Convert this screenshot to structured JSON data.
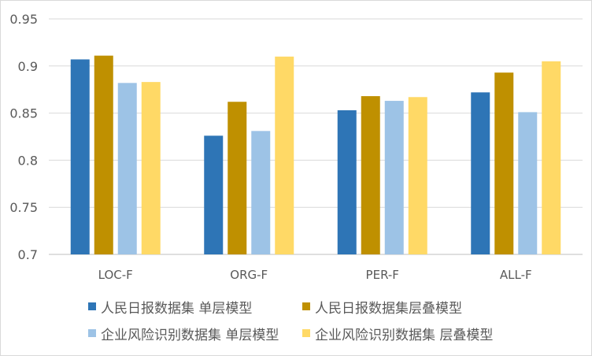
{
  "chart_data": {
    "type": "bar",
    "categories": [
      "LOC-F",
      "ORG-F",
      "PER-F",
      "ALL-F"
    ],
    "series": [
      {
        "name": "人民日报数据集 单层模型",
        "color": "#2e75b6",
        "values": [
          0.907,
          0.826,
          0.853,
          0.872
        ]
      },
      {
        "name": "人民日报数据集层叠模型",
        "color": "#bf9000",
        "values": [
          0.911,
          0.862,
          0.868,
          0.893
        ]
      },
      {
        "name": "企业风险识别数据集 单层模型",
        "color": "#9dc3e6",
        "values": [
          0.882,
          0.831,
          0.863,
          0.851
        ]
      },
      {
        "name": "企业风险识别数据集 层叠模型",
        "color": "#ffd966",
        "values": [
          0.883,
          0.91,
          0.867,
          0.905
        ]
      }
    ],
    "ylim": [
      0.7,
      0.95
    ],
    "yticks": [
      "0.7",
      "0.75",
      "0.8",
      "0.85",
      "0.9",
      "0.95"
    ],
    "grid": true,
    "legend_position": "bottom",
    "title": "",
    "xlabel": "",
    "ylabel": ""
  }
}
